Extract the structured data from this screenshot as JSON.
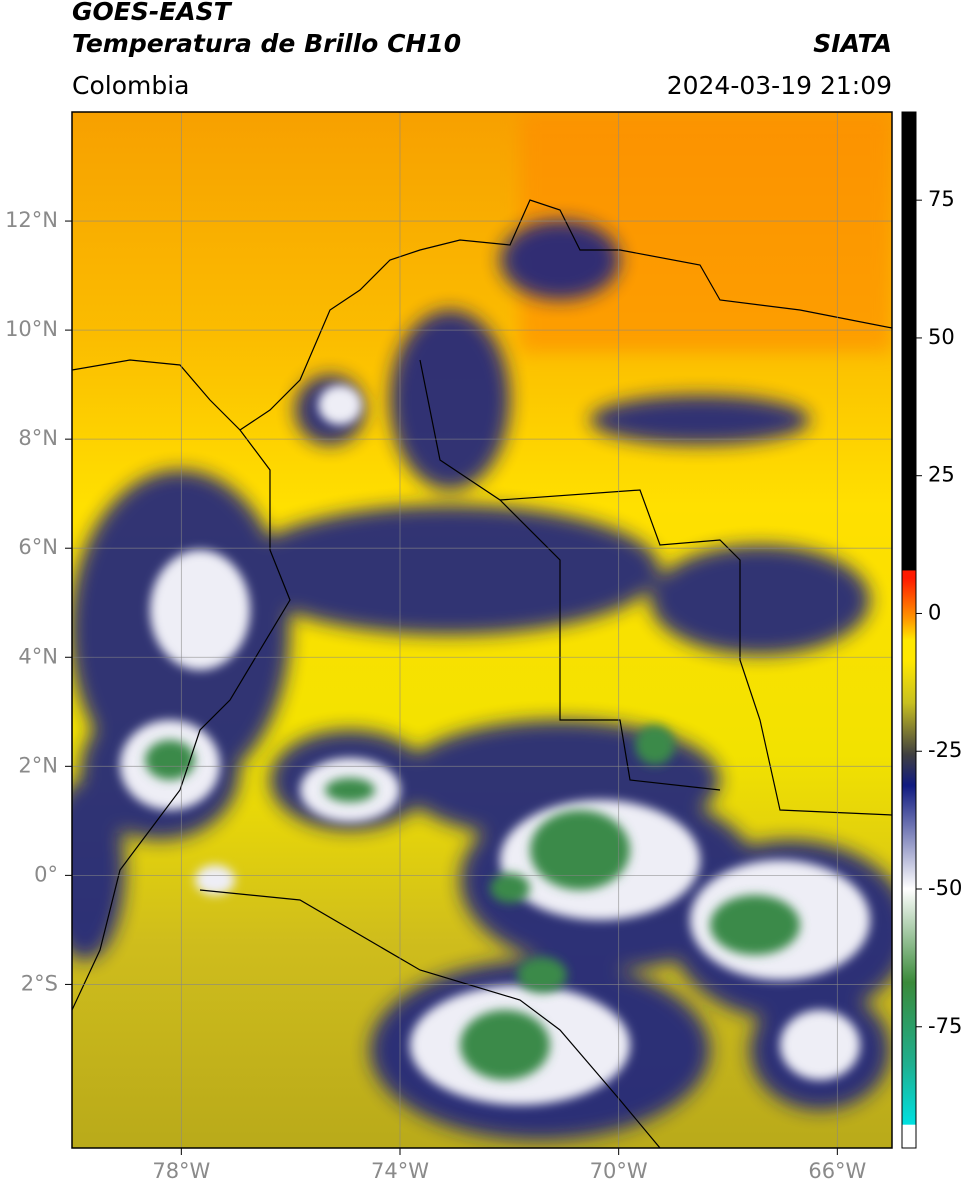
{
  "header": {
    "title": "GOES-EAST",
    "subtitle": "Temperatura de Brillo CH10",
    "source": "SIATA",
    "region": "Colombia",
    "timestamp": "2024-03-19 21:09"
  },
  "map": {
    "xlim": [
      -80,
      -65
    ],
    "ylim": [
      -5,
      14
    ],
    "grid": true,
    "xticks": [
      {
        "value": -78,
        "label": "78°W"
      },
      {
        "value": -74,
        "label": "74°W"
      },
      {
        "value": -70,
        "label": "70°W"
      },
      {
        "value": -66,
        "label": "66°W"
      }
    ],
    "yticks": [
      {
        "value": 12,
        "label": "12°N"
      },
      {
        "value": 10,
        "label": "10°N"
      },
      {
        "value": 8,
        "label": "8°N"
      },
      {
        "value": 6,
        "label": "6°N"
      },
      {
        "value": 4,
        "label": "4°N"
      },
      {
        "value": 2,
        "label": "2°N"
      },
      {
        "value": 0,
        "label": "0°"
      },
      {
        "value": -2,
        "label": "2°S"
      }
    ]
  },
  "colorbar": {
    "clim": [
      -97,
      91
    ],
    "ticks": [
      75,
      50,
      25,
      0,
      -25,
      -50,
      -75
    ]
  }
}
